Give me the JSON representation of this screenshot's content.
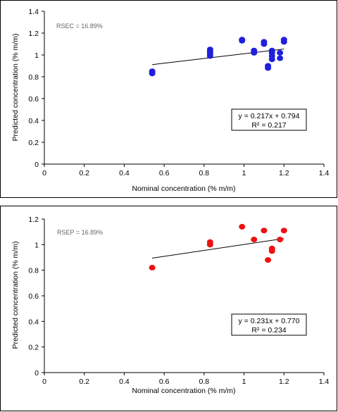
{
  "chart_data": [
    {
      "type": "scatter",
      "title": "",
      "xlabel": "Nominal concentration (% m/m)",
      "ylabel": "Predicted concentration (% m/m)",
      "xlim": [
        0,
        1.4
      ],
      "ylim": [
        0,
        1.4
      ],
      "xticks": [
        "0",
        "0.2",
        "0.4",
        "0.6",
        "0.8",
        "1",
        "1.2",
        "1.4"
      ],
      "yticks": [
        "0",
        "0.2",
        "0.4",
        "0.6",
        "0.8",
        "1",
        "1.2",
        "1.4"
      ],
      "annotation": "RSEC = 16.89%",
      "equation": "y = 0.217x + 0.794",
      "r2": "R² = 0.217",
      "trendline": {
        "slope": 0.217,
        "intercept": 0.794,
        "x_range": [
          0.54,
          1.2
        ]
      },
      "marker_color": "#1f1fdd",
      "grid": false,
      "points": [
        {
          "x": 0.54,
          "y": 0.83
        },
        {
          "x": 0.54,
          "y": 0.85
        },
        {
          "x": 0.83,
          "y": 0.99
        },
        {
          "x": 0.83,
          "y": 1.01
        },
        {
          "x": 0.83,
          "y": 1.03
        },
        {
          "x": 0.83,
          "y": 1.05
        },
        {
          "x": 0.99,
          "y": 1.13
        },
        {
          "x": 0.99,
          "y": 1.14
        },
        {
          "x": 1.05,
          "y": 1.02
        },
        {
          "x": 1.05,
          "y": 1.04
        },
        {
          "x": 1.1,
          "y": 1.1
        },
        {
          "x": 1.1,
          "y": 1.12
        },
        {
          "x": 1.12,
          "y": 0.88
        },
        {
          "x": 1.12,
          "y": 0.9
        },
        {
          "x": 1.14,
          "y": 0.96
        },
        {
          "x": 1.14,
          "y": 0.99
        },
        {
          "x": 1.14,
          "y": 1.02
        },
        {
          "x": 1.14,
          "y": 1.04
        },
        {
          "x": 1.18,
          "y": 0.97
        },
        {
          "x": 1.18,
          "y": 1.02
        },
        {
          "x": 1.2,
          "y": 1.12
        },
        {
          "x": 1.2,
          "y": 1.14
        }
      ]
    },
    {
      "type": "scatter",
      "title": "",
      "xlabel": "Nominal concentration (% m/m)",
      "ylabel": "Predicted concentration (% m/m)",
      "xlim": [
        0,
        1.4
      ],
      "ylim": [
        0,
        1.2
      ],
      "xticks": [
        "0",
        "0.2",
        "0.4",
        "0.6",
        "0.8",
        "1",
        "1.2",
        "1.4"
      ],
      "yticks": [
        "0",
        "0.2",
        "0.4",
        "0.6",
        "0.8",
        "1",
        "1.2"
      ],
      "annotation": "RSEP = 16.89%",
      "equation": "y = 0.231x + 0.770",
      "r2": "R² = 0.234",
      "trendline": {
        "slope": 0.231,
        "intercept": 0.77,
        "x_range": [
          0.54,
          1.2
        ]
      },
      "marker_color": "#ee1111",
      "grid": false,
      "points": [
        {
          "x": 0.54,
          "y": 0.82
        },
        {
          "x": 0.83,
          "y": 1.0
        },
        {
          "x": 0.83,
          "y": 1.02
        },
        {
          "x": 0.99,
          "y": 1.14
        },
        {
          "x": 1.05,
          "y": 1.04
        },
        {
          "x": 1.1,
          "y": 1.11
        },
        {
          "x": 1.12,
          "y": 0.88
        },
        {
          "x": 1.14,
          "y": 0.95
        },
        {
          "x": 1.14,
          "y": 0.97
        },
        {
          "x": 1.18,
          "y": 1.04
        },
        {
          "x": 1.2,
          "y": 1.11
        }
      ]
    }
  ]
}
